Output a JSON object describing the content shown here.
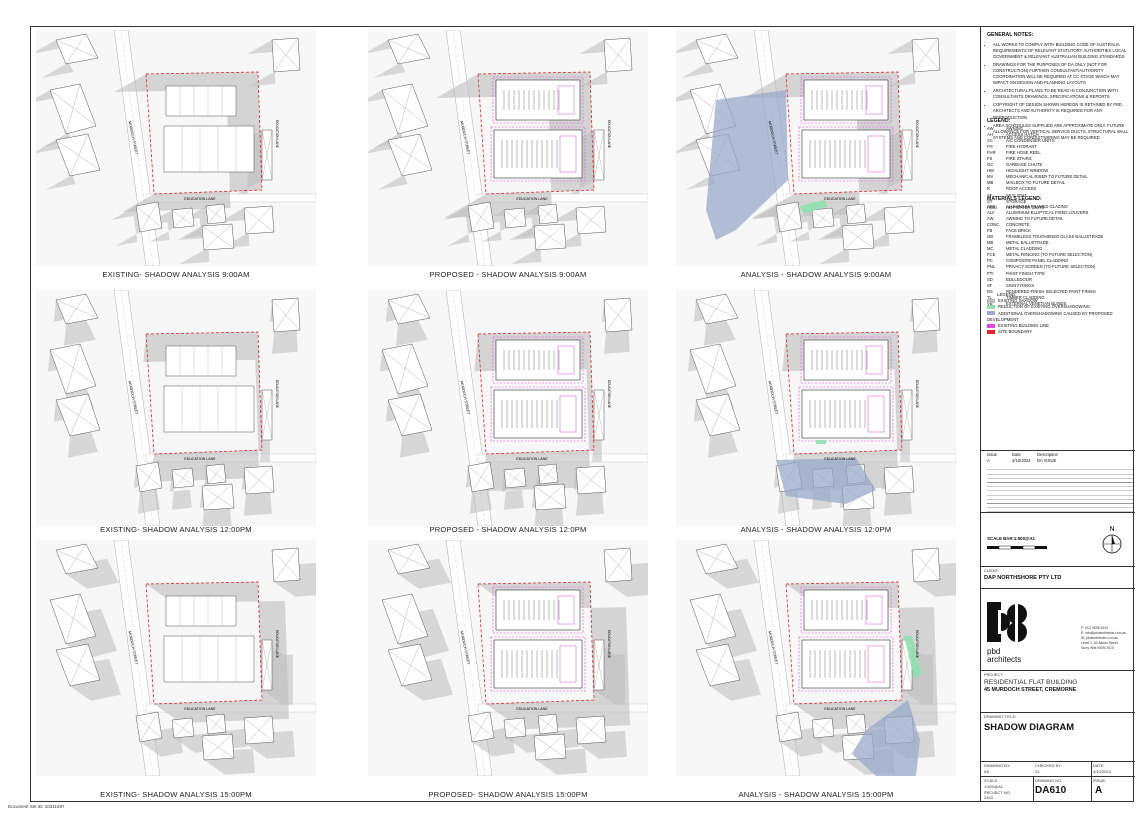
{
  "panels": [
    {
      "caption": "EXISTING- SHADOW ANALYSIS 9:00AM",
      "state": "existing",
      "time": "9am"
    },
    {
      "caption": "PROPOSED - SHADOW ANALYSIS 9:00AM",
      "state": "proposed",
      "time": "9am"
    },
    {
      "caption": "ANALYSIS - SHADOW ANALYSIS 9:00AM",
      "state": "analysis",
      "time": "9am"
    },
    {
      "caption": "EXISTING- SHADOW ANALYSIS 12:00PM",
      "state": "existing",
      "time": "12pm"
    },
    {
      "caption": "PROPOSED - SHADOW ANALYSIS 12:0PM",
      "state": "proposed",
      "time": "12pm"
    },
    {
      "caption": "ANALYSIS - SHADOW ANALYSIS 12:0PM",
      "state": "analysis",
      "time": "12pm"
    },
    {
      "caption": "EXISTING- SHADOW ANALYSIS 15:00PM",
      "state": "existing",
      "time": "3pm"
    },
    {
      "caption": "PROPOSED- SHADOW ANALYSIS 15:00PM",
      "state": "proposed",
      "time": "3pm"
    },
    {
      "caption": "ANALYSIS - SHADOW ANALYSIS 15:00PM",
      "state": "analysis",
      "time": "3pm"
    }
  ],
  "map_labels": {
    "street": "MURDOCH STREET",
    "lane": "EDUCATION LANE",
    "east_lane": "EDUCATION LANE"
  },
  "colors": {
    "shadow": "#bdbdbd",
    "site": "#e0262b",
    "proposed": "#e048e0",
    "reduction": "#8fe0b0",
    "additional": "#9aa9c9"
  },
  "titleblock": {
    "general_notes_title": "GENERAL NOTES:",
    "general_notes": [
      "ALL WORKS TO COMPLY WITH BUILDING CODE OF AUSTRALIA REQUIREMENTS OF RELEVANT STATUTORY AUTHORITIES LOCAL GOVERNMENT & RELEVANT AUSTRALIAN BUILDING STANDARDS",
      "DRAWINGS FOR THE PURPOSES OF DA ONLY (NOT FOR CONSTRUCTION) FURTHER CONSULTANT/AUTHORITY COORDINATION WILL BE REQUIRED AT CC STAGE WHICH MAY IMPACT ON DESIGN AND PLANNING LAYOUTS",
      "ARCHITECTURAL PLANS TO BE READ IN CONJUNCTION WITH CONSULTANTS DRAWINGS, SPECIFICATIONS & REPORTS",
      "COPYRIGHT OF DESIGN SHOWN HEREON IS RETAINED BY PBD ARCHITECTS AND AUTHORITY IS REQUIRED FOR ANY REPRODUCTION",
      "AREA SCHEDULES SUPPLIED ARE APPROXIMATE ONLY. FUTURE ALLOWANCE FOR VERTICAL SERVICE DUCTS, STRUCTURAL WALL SYSTEMS AND CONDUIT/WIRING MAY BE REQUIRED"
    ],
    "legend_title": "LEGEND:",
    "legend": [
      [
        "AW",
        "AWNING"
      ],
      [
        "AH",
        "ACCESS HATCH"
      ],
      [
        "AC",
        "A/C CONDENSER UNITS"
      ],
      [
        "FH",
        "FIRE HYDRANT"
      ],
      [
        "FHR",
        "FIRE HOSE REEL"
      ],
      [
        "FS",
        "FIRE STAIRS"
      ],
      [
        "GC",
        "GARBAGE CHUTE"
      ],
      [
        "HW",
        "HIGHLIGHT WINDOW"
      ],
      [
        "MV",
        "MECHANICAL RISER TO FUTURE DETAIL"
      ],
      [
        "MB",
        "MAILBOX TO FUTURE DETAIL"
      ],
      [
        "R",
        "ROOF ACCESS"
      ],
      [
        "SF",
        "SKYLIGHT"
      ],
      [
        "ST",
        "STORAGE"
      ],
      [
        "HWU",
        "HOT WATER UNITS"
      ]
    ],
    "materials_title": "MATERIALS LEGEND:",
    "materials": [
      [
        "AFG",
        "ALUMINIUM FRAMED GLAZING"
      ],
      [
        "ALV",
        "ALUMINIUM ELLIPTICAL FIXED LOUVERS"
      ],
      [
        "AW",
        "AWNING TO FUTURE DETAIL"
      ],
      [
        "CONC",
        "CONCRETE"
      ],
      [
        "FB",
        "FACE BRICK"
      ],
      [
        "GB",
        "FRAMELESS TOUGHENED GLASS BALUSTRADE"
      ],
      [
        "MB",
        "METAL BALUSTRADE"
      ],
      [
        "MC",
        "METAL CLADDING"
      ],
      [
        "FCE",
        "METAL FENCING (TO FUTURE SELECTION)"
      ],
      [
        "PC",
        "COMPOSITE PANEL CLADDING"
      ],
      [
        "PNL",
        "PRIVACY SCREEN (TO FUTURE SELECTION)"
      ],
      [
        "PTI",
        "PAINT FINISH TYPE"
      ],
      [
        "SD",
        "BOLLEDOOR"
      ],
      [
        "SF",
        "SIGN FIXINGS"
      ],
      [
        "RS",
        "RENDERED FINISH SELECTED PAINT FINISH"
      ],
      [
        "TL",
        "TIMBER CLADDING"
      ],
      [
        "VB",
        "EXTERNAL VENETIAN BLINDS"
      ]
    ],
    "shadow_legend_title": "LEGEND:",
    "shadow_legend": [
      {
        "label": "EXISTING SHADOW",
        "color": "#bdbdbd"
      },
      {
        "label": "REDUCTION OF EXISTING OVERSHADOWING",
        "color": "#8fe0b0"
      },
      {
        "label": "ADDITIONAL OVERSHADOWING CAUSED BY PROPOSED DEVELOPMENT",
        "color": "#9aa9c9"
      },
      {
        "label": "EXISTING BUILDING LINE",
        "color": "#e048e0"
      },
      {
        "label": "SITE BOUNDARY",
        "color": "#e0262b"
      }
    ],
    "issue_head": [
      "Issue",
      "Date",
      "Description"
    ],
    "issue_rows": [
      [
        "A",
        "4/10/2024",
        "DA ISSUE"
      ]
    ],
    "scale_bar": "SCALE BAR 1:500@A1",
    "client_label": "CLIENT:",
    "client": "DAP NORTHSHORE PTY LTD",
    "firm": {
      "name_line1": "pbd",
      "name_line2": "architects",
      "contact": [
        "P: (02) 9698 8140",
        "E: info@pbdarchitects.com.au",
        "W: pbdarchitects.com.au",
        "Level 2, 52 Albion Street",
        "Surry Hills NSW 2010"
      ]
    },
    "project_label": "PROJECT:",
    "project_line1": "RESIDENTIAL FLAT BUILDING",
    "project_line2": "45 MURDOCH STREET, CREMORNE",
    "drawing_title_label": "DRAWING TITLE:",
    "drawing_title": "SHADOW DIAGRAM",
    "drawn_by_label": "DRAWING BY:",
    "drawn_by": "AS",
    "checked_label": "CHECKED BY:",
    "checked": "XL",
    "date_label": "DATE:",
    "date": "4/10/2024",
    "scale_label": "SCALE:",
    "scale": "1:500@A1",
    "drawing_no_label": "DRAWING NO.",
    "drawing_no": "DA610",
    "issue_label": "ISSUE:",
    "issue": "A",
    "project_no_label": "PROJECT NO.",
    "project_no": "2403"
  },
  "doc_id": "Document Set ID: 10311597"
}
